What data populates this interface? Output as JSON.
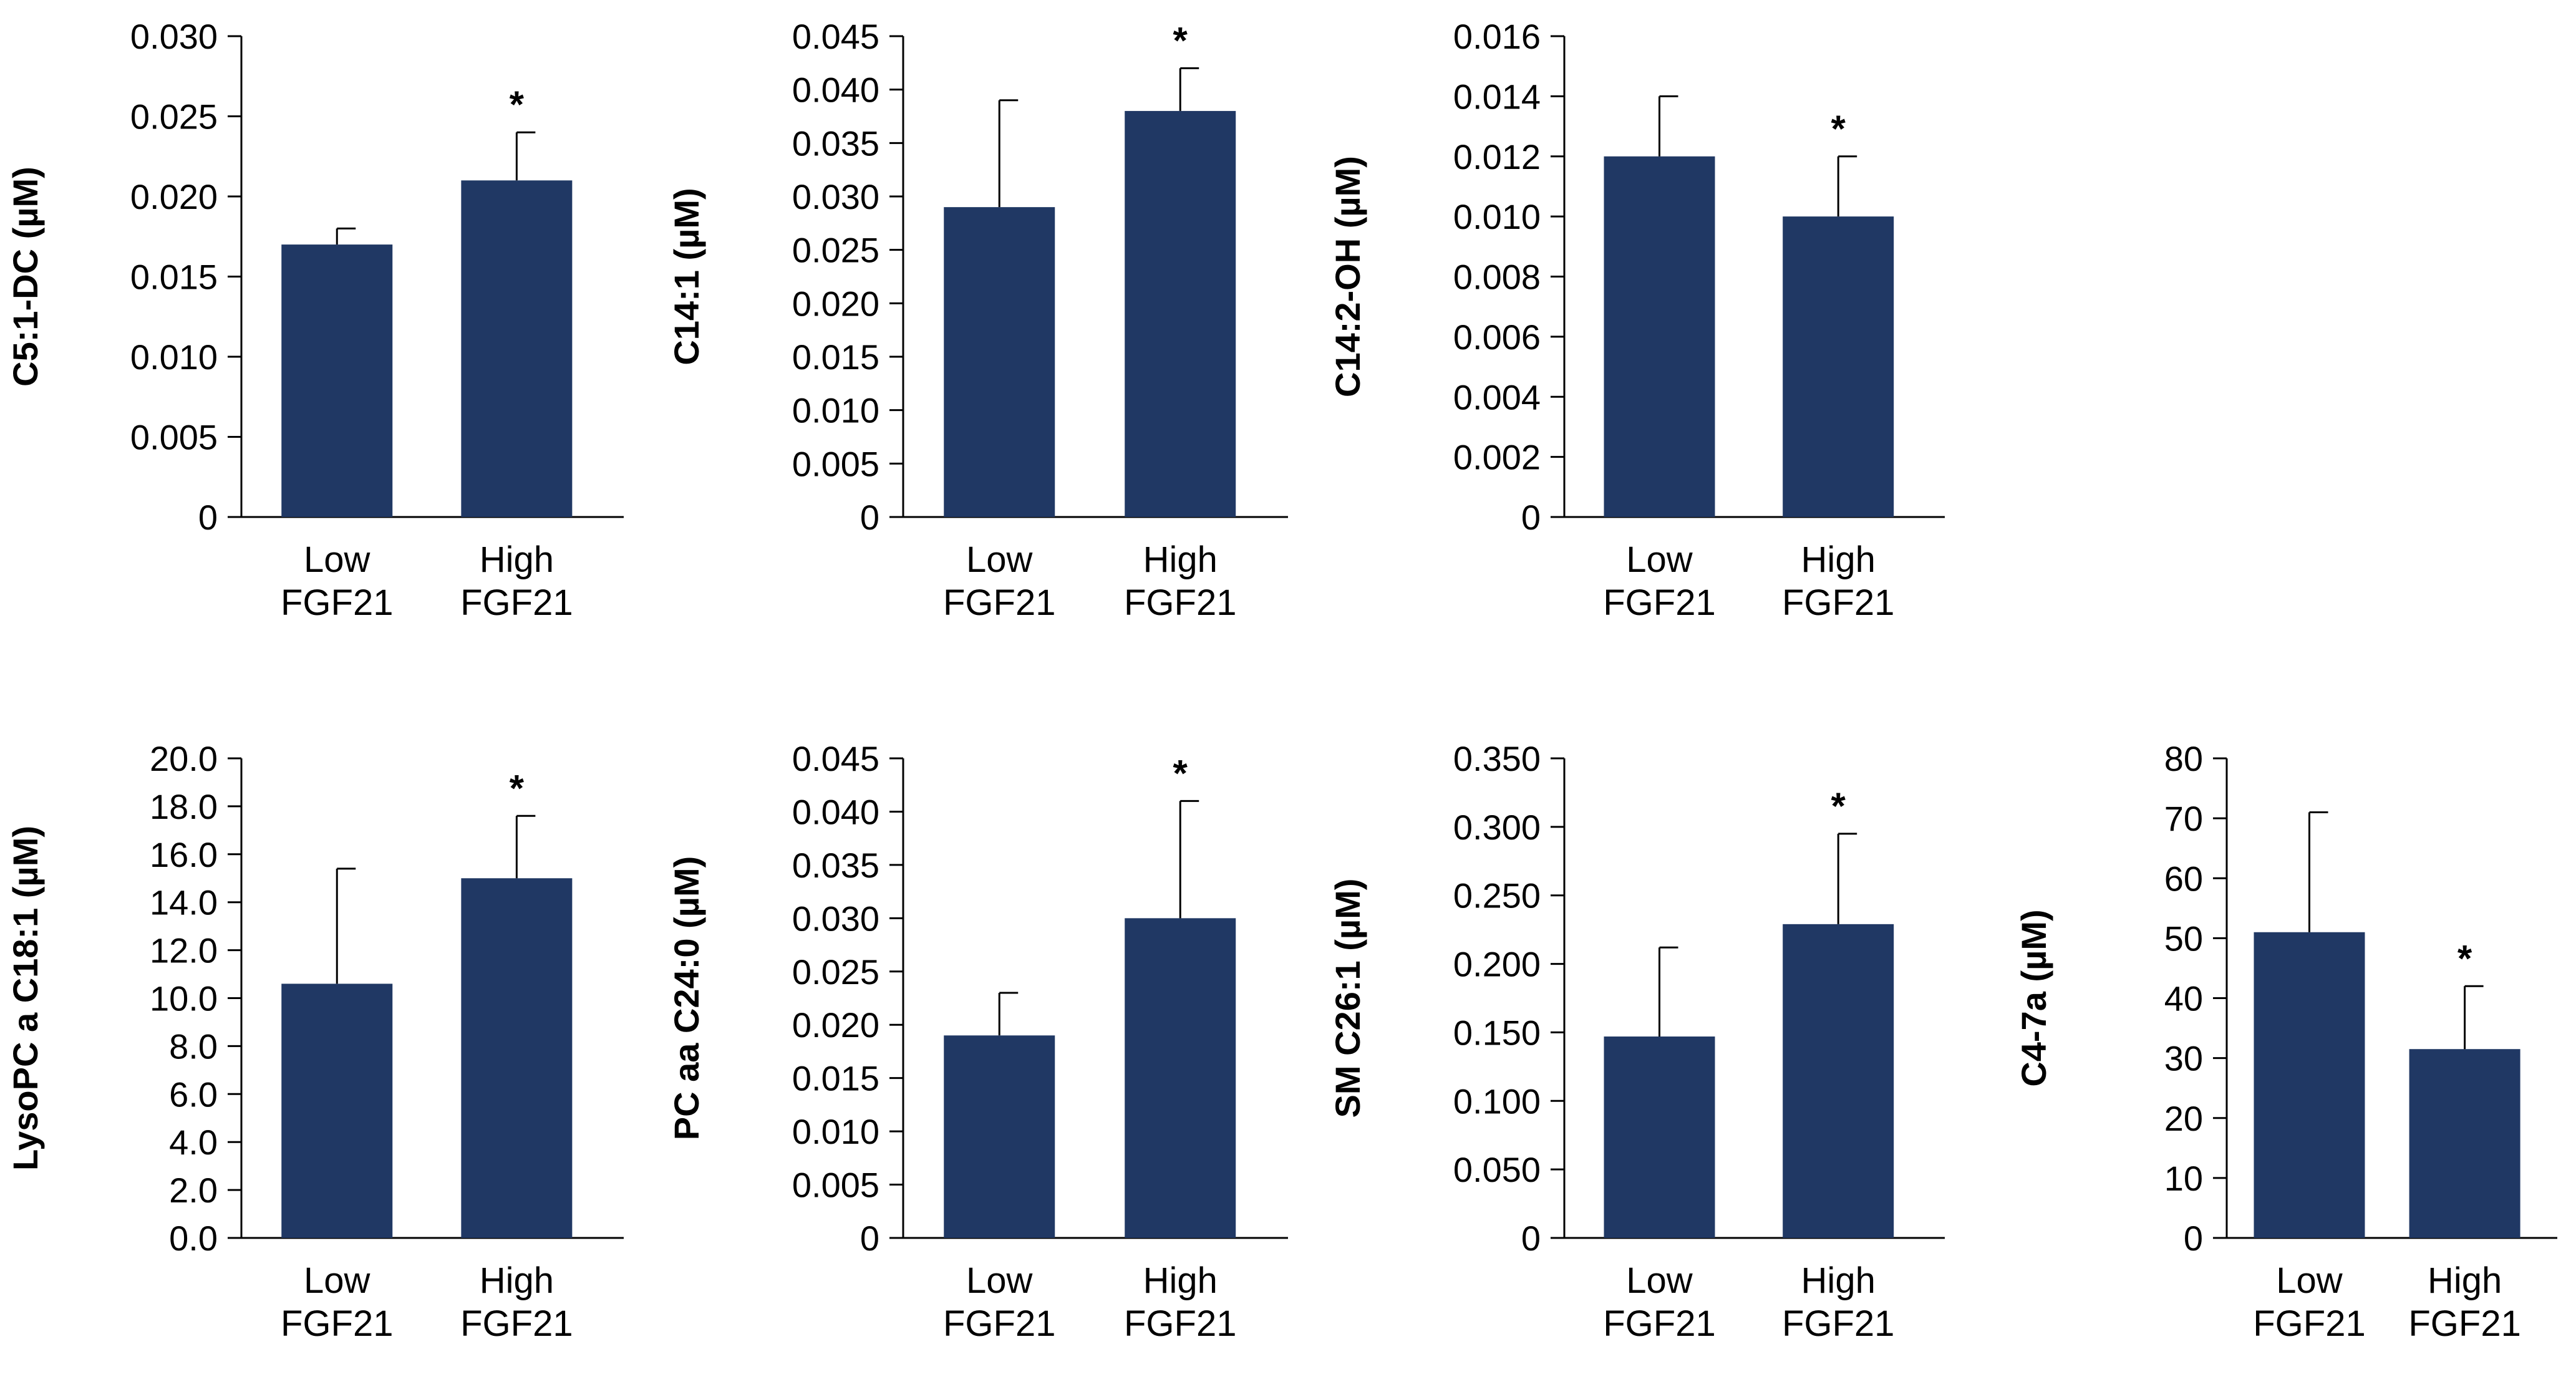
{
  "colors": {
    "bar": "#203864",
    "axis": "#000000",
    "background": "#ffffff"
  },
  "chart_data": [
    {
      "type": "bar",
      "ylabel": "C5:1-DC (µM)",
      "categories": [
        [
          "Low",
          "FGF21"
        ],
        [
          "High",
          "FGF21"
        ]
      ],
      "values": [
        0.017,
        0.021
      ],
      "errors": [
        0.001,
        0.003
      ],
      "significance": [
        "",
        "*"
      ],
      "ylim": [
        0,
        0.03
      ],
      "yticks": [
        0,
        0.005,
        0.01,
        0.015,
        0.02,
        0.025,
        0.03
      ],
      "ytick_labels": [
        "0",
        "0.005",
        "0.010",
        "0.015",
        "0.020",
        "0.025",
        "0.030"
      ],
      "grid": false
    },
    {
      "type": "bar",
      "ylabel": "C14:1 (µM)",
      "categories": [
        [
          "Low",
          "FGF21"
        ],
        [
          "High",
          "FGF21"
        ]
      ],
      "values": [
        0.029,
        0.038
      ],
      "errors": [
        0.01,
        0.004
      ],
      "significance": [
        "",
        "*"
      ],
      "ylim": [
        0,
        0.045
      ],
      "yticks": [
        0,
        0.005,
        0.01,
        0.015,
        0.02,
        0.025,
        0.03,
        0.035,
        0.04,
        0.045
      ],
      "ytick_labels": [
        "0",
        "0.005",
        "0.010",
        "0.015",
        "0.020",
        "0.025",
        "0.030",
        "0.035",
        "0.040",
        "0.045"
      ],
      "grid": false
    },
    {
      "type": "bar",
      "ylabel": "C14:2-OH (µM)",
      "categories": [
        [
          "Low",
          "FGF21"
        ],
        [
          "High",
          "FGF21"
        ]
      ],
      "values": [
        0.012,
        0.01
      ],
      "errors": [
        0.002,
        0.002
      ],
      "significance": [
        "",
        "*"
      ],
      "ylim": [
        0,
        0.016
      ],
      "yticks": [
        0,
        0.002,
        0.004,
        0.006,
        0.008,
        0.01,
        0.012,
        0.014,
        0.016
      ],
      "ytick_labels": [
        "0",
        "0.002",
        "0.004",
        "0.006",
        "0.008",
        "0.010",
        "0.012",
        "0.014",
        "0.016"
      ],
      "grid": false
    },
    {
      "type": "bar",
      "ylabel": "LysoPC a C18:1 (µM)",
      "categories": [
        [
          "Low",
          "FGF21"
        ],
        [
          "High",
          "FGF21"
        ]
      ],
      "values": [
        10.6,
        15.0
      ],
      "errors": [
        4.8,
        2.6
      ],
      "significance": [
        "",
        "*"
      ],
      "ylim": [
        0,
        20
      ],
      "yticks": [
        0,
        2,
        4,
        6,
        8,
        10,
        12,
        14,
        16,
        18,
        20
      ],
      "ytick_labels": [
        "0.0",
        "2.0",
        "4.0",
        "6.0",
        "8.0",
        "10.0",
        "12.0",
        "14.0",
        "16.0",
        "18.0",
        "20.0"
      ],
      "grid": false
    },
    {
      "type": "bar",
      "ylabel": "PC aa C24:0 (µM)",
      "categories": [
        [
          "Low",
          "FGF21"
        ],
        [
          "High",
          "FGF21"
        ]
      ],
      "values": [
        0.019,
        0.03
      ],
      "errors": [
        0.004,
        0.011
      ],
      "significance": [
        "",
        "*"
      ],
      "ylim": [
        0,
        0.045
      ],
      "yticks": [
        0,
        0.005,
        0.01,
        0.015,
        0.02,
        0.025,
        0.03,
        0.035,
        0.04,
        0.045
      ],
      "ytick_labels": [
        "0",
        "0.005",
        "0.010",
        "0.015",
        "0.020",
        "0.025",
        "0.030",
        "0.035",
        "0.040",
        "0.045"
      ],
      "grid": false
    },
    {
      "type": "bar",
      "ylabel": "SM C26:1 (µM)",
      "categories": [
        [
          "Low",
          "FGF21"
        ],
        [
          "High",
          "FGF21"
        ]
      ],
      "values": [
        0.147,
        0.229
      ],
      "errors": [
        0.065,
        0.066
      ],
      "significance": [
        "",
        "*"
      ],
      "ylim": [
        0,
        0.35
      ],
      "yticks": [
        0,
        0.05,
        0.1,
        0.15,
        0.2,
        0.25,
        0.3,
        0.35
      ],
      "ytick_labels": [
        "0",
        "0.050",
        "0.100",
        "0.150",
        "0.200",
        "0.250",
        "0.300",
        "0.350"
      ],
      "grid": false
    },
    {
      "type": "bar",
      "ylabel": "C4-7a (µM)",
      "categories": [
        [
          "Low",
          "FGF21"
        ],
        [
          "High",
          "FGF21"
        ]
      ],
      "values": [
        51,
        31.5
      ],
      "errors": [
        20,
        10.5
      ],
      "significance": [
        "",
        "*"
      ],
      "ylim": [
        0,
        80
      ],
      "yticks": [
        0,
        10,
        20,
        30,
        40,
        50,
        60,
        70,
        80
      ],
      "ytick_labels": [
        "0",
        "10",
        "20",
        "30",
        "40",
        "50",
        "60",
        "70",
        "80"
      ],
      "grid": false
    }
  ]
}
